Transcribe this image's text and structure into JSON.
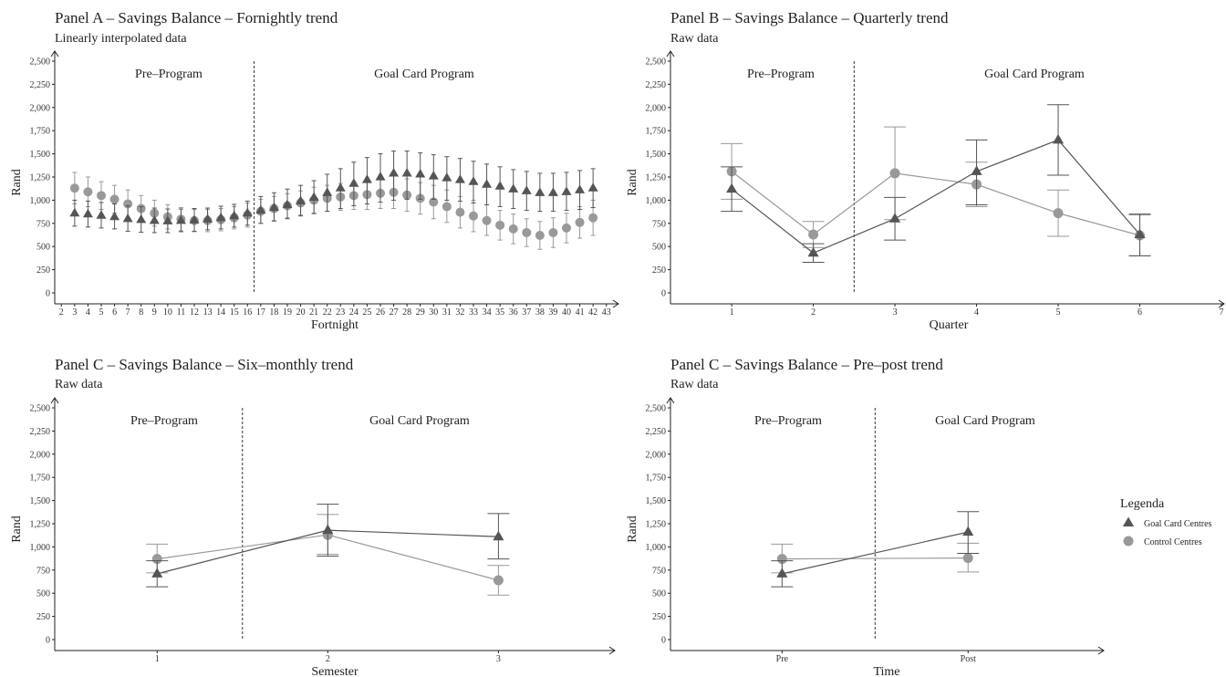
{
  "legend": {
    "title": "Legenda",
    "items": [
      {
        "name": "Goal Card Centres",
        "color": "#555555",
        "marker": "triangle"
      },
      {
        "name": "Control Centres",
        "color": "#999999",
        "marker": "circle"
      }
    ],
    "placement": "right"
  },
  "chart_data": [
    {
      "type": "line",
      "title": "Panel A – Savings Balance – Fornightly trend",
      "subtitle": "Linearly interpolated data",
      "xlabel": "Fortnight",
      "ylabel": "Rand",
      "xlim": [
        1.5,
        43.5
      ],
      "x_ticks": [
        "2",
        "3",
        "4",
        "5",
        "6",
        "7",
        "8",
        "9",
        "10",
        "11",
        "12",
        "13",
        "14",
        "15",
        "16",
        "17",
        "18",
        "19",
        "20",
        "21",
        "22",
        "23",
        "24",
        "25",
        "26",
        "27",
        "28",
        "29",
        "30",
        "31",
        "32",
        "33",
        "34",
        "35",
        "36",
        "37",
        "38",
        "39",
        "40",
        "41",
        "42",
        "43"
      ],
      "ylim": [
        0,
        2500
      ],
      "y_ticks": [
        "0",
        "250",
        "500",
        "750",
        "1,000",
        "1,250",
        "1,500",
        "1,750",
        "2,000",
        "2,250",
        "2,500"
      ],
      "y_tick_values": [
        0,
        250,
        500,
        750,
        1000,
        1250,
        1500,
        1750,
        2000,
        2250,
        2500
      ],
      "divider_x": 16.5,
      "regions": [
        "Pre–Program",
        "Goal Card Program"
      ],
      "grid": false,
      "x": [
        3,
        4,
        5,
        6,
        7,
        8,
        9,
        10,
        11,
        12,
        13,
        14,
        15,
        16,
        17,
        18,
        19,
        20,
        21,
        22,
        23,
        24,
        25,
        26,
        27,
        28,
        29,
        30,
        31,
        32,
        33,
        34,
        35,
        36,
        37,
        38,
        39,
        40,
        41,
        42
      ],
      "series": [
        {
          "name": "Goal Card Centres",
          "values": [
            860,
            850,
            835,
            820,
            800,
            790,
            780,
            775,
            780,
            785,
            795,
            810,
            830,
            860,
            890,
            920,
            950,
            990,
            1030,
            1080,
            1130,
            1180,
            1220,
            1250,
            1290,
            1290,
            1280,
            1260,
            1240,
            1220,
            1200,
            1170,
            1150,
            1120,
            1100,
            1080,
            1080,
            1090,
            1110,
            1130
          ],
          "lower": [
            720,
            710,
            700,
            690,
            665,
            655,
            650,
            650,
            660,
            665,
            680,
            690,
            710,
            730,
            750,
            775,
            800,
            830,
            855,
            880,
            910,
            940,
            960,
            980,
            1000,
            1010,
            1010,
            1010,
            1000,
            990,
            970,
            950,
            930,
            910,
            890,
            880,
            880,
            890,
            900,
            920
          ],
          "upper": [
            1000,
            990,
            975,
            960,
            940,
            930,
            915,
            905,
            905,
            910,
            915,
            935,
            955,
            990,
            1040,
            1080,
            1120,
            1160,
            1210,
            1280,
            1340,
            1410,
            1460,
            1500,
            1530,
            1530,
            1510,
            1490,
            1470,
            1450,
            1420,
            1390,
            1360,
            1330,
            1310,
            1290,
            1290,
            1300,
            1320,
            1340
          ]
        },
        {
          "name": "Control Centres",
          "values": [
            1130,
            1090,
            1050,
            1010,
            960,
            910,
            860,
            820,
            795,
            780,
            780,
            790,
            810,
            840,
            880,
            910,
            940,
            970,
            1000,
            1020,
            1035,
            1050,
            1060,
            1075,
            1085,
            1055,
            1020,
            980,
            930,
            870,
            830,
            780,
            730,
            690,
            650,
            620,
            650,
            700,
            760,
            810
          ],
          "lower": [
            960,
            930,
            900,
            860,
            810,
            770,
            720,
            690,
            670,
            660,
            660,
            670,
            690,
            710,
            750,
            780,
            810,
            840,
            860,
            880,
            890,
            900,
            900,
            910,
            910,
            880,
            850,
            800,
            760,
            700,
            660,
            620,
            570,
            530,
            500,
            470,
            490,
            540,
            590,
            620
          ],
          "upper": [
            1300,
            1250,
            1200,
            1160,
            1110,
            1050,
            1000,
            950,
            920,
            900,
            900,
            910,
            930,
            970,
            1010,
            1040,
            1070,
            1100,
            1140,
            1160,
            1180,
            1200,
            1220,
            1240,
            1260,
            1230,
            1190,
            1160,
            1110,
            1040,
            1000,
            950,
            890,
            850,
            800,
            770,
            810,
            860,
            930,
            1000
          ]
        }
      ]
    },
    {
      "type": "line",
      "title": "Panel B – Savings Balance – Quarterly trend",
      "subtitle": "Raw data",
      "xlabel": "Quarter",
      "ylabel": "Rand",
      "xlim": [
        0.25,
        7
      ],
      "x_ticks": [
        "1",
        "2",
        "3",
        "4",
        "5",
        "6",
        "7"
      ],
      "x_tick_values": [
        1,
        2,
        3,
        4,
        5,
        6,
        7
      ],
      "ylim": [
        0,
        2500
      ],
      "y_ticks": [
        "0",
        "250",
        "500",
        "750",
        "1,000",
        "1,250",
        "1,500",
        "1,750",
        "2,000",
        "2,250",
        "2,500"
      ],
      "y_tick_values": [
        0,
        250,
        500,
        750,
        1000,
        1250,
        1500,
        1750,
        2000,
        2250,
        2500
      ],
      "divider_x": 2.5,
      "regions": [
        "Pre–Program",
        "Goal Card Program"
      ],
      "grid": false,
      "x": [
        1,
        2,
        3,
        4,
        5,
        6
      ],
      "series": [
        {
          "name": "Goal Card Centres",
          "values": [
            1120,
            430,
            800,
            1310,
            1650,
            630
          ],
          "lower": [
            880,
            330,
            570,
            950,
            1270,
            400
          ],
          "upper": [
            1360,
            530,
            1030,
            1650,
            2030,
            850
          ]
        },
        {
          "name": "Control Centres",
          "values": [
            1310,
            630,
            1290,
            1170,
            860,
            620
          ],
          "lower": [
            1010,
            490,
            790,
            930,
            610,
            400
          ],
          "upper": [
            1610,
            770,
            1790,
            1410,
            1110,
            840
          ]
        }
      ]
    },
    {
      "type": "line",
      "title": "Panel C – Savings Balance – Six–monthly trend",
      "subtitle": "Raw data",
      "xlabel": "Semester",
      "ylabel": "Rand",
      "xlim": [
        0.4,
        3.65
      ],
      "x_ticks": [
        "1",
        "2",
        "3"
      ],
      "x_tick_values": [
        1,
        2,
        3
      ],
      "ylim": [
        0,
        2500
      ],
      "y_ticks": [
        "0",
        "250",
        "500",
        "750",
        "1,000",
        "1,250",
        "1,500",
        "1,750",
        "2,000",
        "2,250",
        "2,500"
      ],
      "y_tick_values": [
        0,
        250,
        500,
        750,
        1000,
        1250,
        1500,
        1750,
        2000,
        2250,
        2500
      ],
      "divider_x": 1.5,
      "regions": [
        "Pre–Program",
        "Goal Card Program"
      ],
      "grid": false,
      "x": [
        1,
        2,
        3
      ],
      "series": [
        {
          "name": "Goal Card Centres",
          "values": [
            710,
            1180,
            1110
          ],
          "lower": [
            570,
            900,
            870
          ],
          "upper": [
            850,
            1460,
            1360
          ]
        },
        {
          "name": "Control Centres",
          "values": [
            870,
            1130,
            640
          ],
          "lower": [
            720,
            920,
            480
          ],
          "upper": [
            1030,
            1350,
            800
          ]
        }
      ]
    },
    {
      "type": "line",
      "title": "Panel C – Savings Balance – Pre–post trend",
      "subtitle": "Raw data",
      "xlabel": "Time",
      "ylabel": "Rand",
      "xlim": [
        0.4,
        2.7
      ],
      "x_ticks": [
        "Pre",
        "Post"
      ],
      "x_tick_values": [
        1,
        2
      ],
      "ylim": [
        0,
        2500
      ],
      "y_ticks": [
        "0",
        "250",
        "500",
        "750",
        "1,000",
        "1,250",
        "1,500",
        "1,750",
        "2,000",
        "2,250",
        "2,500"
      ],
      "y_tick_values": [
        0,
        250,
        500,
        750,
        1000,
        1250,
        1500,
        1750,
        2000,
        2250,
        2500
      ],
      "divider_x": 1.5,
      "regions": [
        "Pre–Program",
        "Goal Card Program"
      ],
      "grid": false,
      "x": [
        1,
        2
      ],
      "series": [
        {
          "name": "Goal Card Centres",
          "values": [
            710,
            1160
          ],
          "lower": [
            570,
            930
          ],
          "upper": [
            850,
            1380
          ]
        },
        {
          "name": "Control Centres",
          "values": [
            870,
            880
          ],
          "lower": [
            720,
            730
          ],
          "upper": [
            1030,
            1040
          ]
        }
      ]
    }
  ]
}
